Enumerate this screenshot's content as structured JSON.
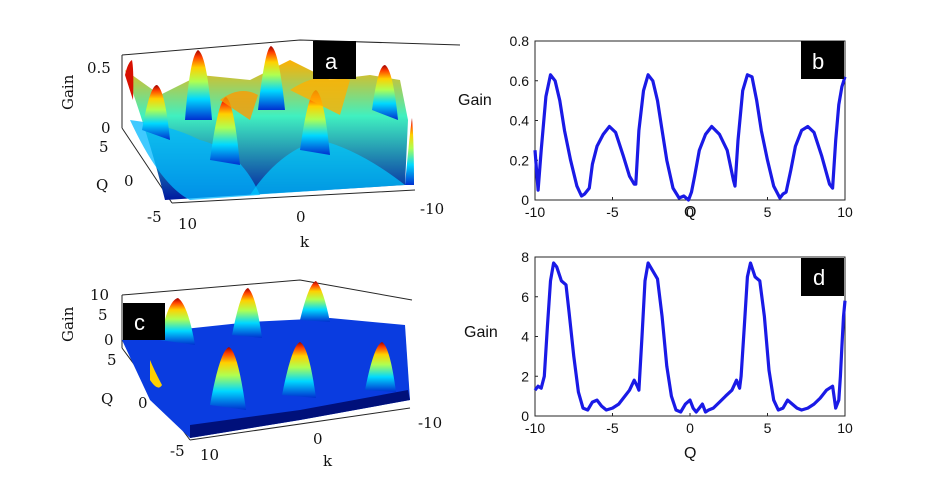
{
  "chart_data": [
    {
      "panel": "a",
      "type": "surface3d",
      "zlabel": "Gain",
      "ylabel": "Q",
      "xlabel": "k",
      "z_ticks": [
        "0",
        "0.5"
      ],
      "q_ticks": [
        "5",
        "0",
        "-5"
      ],
      "k_ticks": [
        "10",
        "0",
        "-10"
      ]
    },
    {
      "panel": "b",
      "type": "line",
      "xlabel": "Q",
      "ylabel": "Gain",
      "xlim": [
        -10,
        10
      ],
      "ylim": [
        0,
        0.8
      ],
      "x_ticks": [
        "-10",
        "-5",
        "0",
        "5",
        "10"
      ],
      "y_ticks": [
        "0",
        "0.2",
        "0.4",
        "0.6",
        "0.8"
      ],
      "series": [
        {
          "name": "Gain",
          "x": [
            -10,
            -9.8,
            -9.6,
            -9.3,
            -9.0,
            -8.7,
            -8.4,
            -8.1,
            -7.7,
            -7.3,
            -7.0,
            -6.8,
            -6.5,
            -6.3,
            -6.0,
            -5.6,
            -5.2,
            -4.8,
            -4.3,
            -3.9,
            -3.6,
            -3.5,
            -3.3,
            -3.0,
            -2.7,
            -2.4,
            -2.1,
            -1.8,
            -1.5,
            -1.1,
            -0.7,
            -0.4,
            -0.1,
            0.1,
            0.3,
            0.6,
            1.0,
            1.4,
            1.9,
            2.4,
            2.8,
            2.9,
            3.1,
            3.4,
            3.7,
            4.0,
            4.3,
            4.6,
            5.0,
            5.4,
            5.8,
            6.0,
            6.2,
            6.5,
            6.8,
            7.2,
            7.6,
            8.0,
            8.5,
            9.0,
            9.2,
            9.4,
            9.6,
            9.8,
            10
          ],
          "values": [
            0.25,
            0.05,
            0.25,
            0.52,
            0.63,
            0.6,
            0.5,
            0.35,
            0.2,
            0.07,
            0.02,
            0.03,
            0.06,
            0.18,
            0.27,
            0.33,
            0.37,
            0.34,
            0.22,
            0.12,
            0.08,
            0.08,
            0.35,
            0.55,
            0.63,
            0.6,
            0.5,
            0.35,
            0.2,
            0.06,
            0.01,
            0.02,
            0.0,
            0.04,
            0.12,
            0.25,
            0.33,
            0.37,
            0.33,
            0.25,
            0.1,
            0.07,
            0.3,
            0.55,
            0.63,
            0.62,
            0.5,
            0.35,
            0.2,
            0.07,
            0.01,
            0.03,
            0.04,
            0.15,
            0.27,
            0.35,
            0.37,
            0.34,
            0.22,
            0.08,
            0.06,
            0.3,
            0.48,
            0.57,
            0.62
          ]
        }
      ]
    },
    {
      "panel": "c",
      "type": "surface3d",
      "zlabel": "Gain",
      "ylabel": "Q",
      "xlabel": "k",
      "z_ticks": [
        "0",
        "5",
        "10"
      ],
      "q_ticks": [
        "5",
        "0",
        "-5"
      ],
      "k_ticks": [
        "10",
        "0",
        "-10"
      ]
    },
    {
      "panel": "d",
      "type": "line",
      "xlabel": "Q",
      "ylabel": "Gain",
      "xlim": [
        -10,
        10
      ],
      "ylim": [
        0,
        8
      ],
      "x_ticks": [
        "-10",
        "-5",
        "0",
        "5",
        "10"
      ],
      "y_ticks": [
        "0",
        "2",
        "4",
        "6",
        "8"
      ],
      "series": [
        {
          "name": "Gain",
          "x": [
            -10,
            -9.8,
            -9.6,
            -9.4,
            -9.2,
            -9.0,
            -8.8,
            -8.6,
            -8.3,
            -8.0,
            -7.8,
            -7.5,
            -7.2,
            -6.9,
            -6.6,
            -6.3,
            -6.0,
            -5.7,
            -5.4,
            -5.0,
            -4.6,
            -4.2,
            -3.9,
            -3.6,
            -3.4,
            -3.3,
            -3.1,
            -2.9,
            -2.7,
            -2.4,
            -2.1,
            -1.8,
            -1.5,
            -1.2,
            -0.9,
            -0.6,
            -0.3,
            0.0,
            0.2,
            0.4,
            0.6,
            0.8,
            1.0,
            1.2,
            1.5,
            1.9,
            2.3,
            2.7,
            3.0,
            3.2,
            3.3,
            3.5,
            3.7,
            3.9,
            4.2,
            4.5,
            4.8,
            5.1,
            5.4,
            5.7,
            6.0,
            6.3,
            6.6,
            6.9,
            7.2,
            7.6,
            8.0,
            8.4,
            8.8,
            9.2,
            9.4,
            9.6,
            9.7,
            9.8,
            9.9,
            10
          ],
          "values": [
            1.3,
            1.5,
            1.4,
            2.0,
            4.5,
            6.8,
            7.7,
            7.5,
            6.8,
            6.6,
            5.2,
            3.0,
            1.2,
            0.4,
            0.3,
            0.7,
            0.8,
            0.5,
            0.3,
            0.4,
            0.6,
            1.0,
            1.3,
            1.8,
            1.5,
            1.3,
            4.0,
            6.8,
            7.7,
            7.3,
            6.9,
            5.0,
            2.5,
            1.0,
            0.3,
            0.2,
            0.6,
            0.8,
            0.4,
            0.2,
            0.4,
            0.6,
            0.2,
            0.3,
            0.4,
            0.7,
            1.0,
            1.3,
            1.8,
            1.4,
            2.0,
            4.5,
            7.0,
            7.7,
            7.0,
            6.8,
            5.0,
            2.3,
            0.8,
            0.3,
            0.4,
            0.8,
            0.6,
            0.4,
            0.3,
            0.4,
            0.6,
            0.9,
            1.3,
            1.5,
            0.4,
            0.8,
            2.0,
            3.5,
            5.0,
            5.8
          ]
        }
      ]
    }
  ],
  "badges": {
    "a": "a",
    "b": "b",
    "c": "c",
    "d": "d"
  }
}
